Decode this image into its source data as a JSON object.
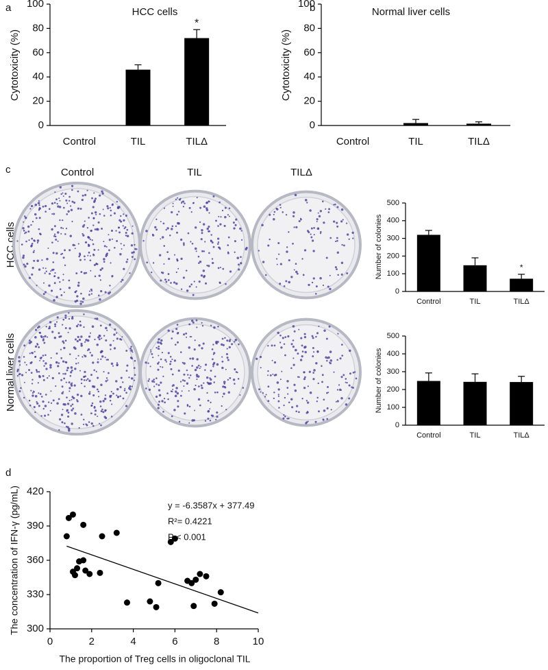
{
  "panel_labels": [
    "a",
    "b",
    "c",
    "d"
  ],
  "plates": {
    "columns": [
      "Control",
      "TIL",
      "TILΔ"
    ],
    "rows": [
      "HCC cells",
      "Normal liver cells"
    ]
  },
  "chart_data": [
    {
      "type": "bar",
      "title": "HCC cells",
      "y_label": "Cytotoxicity (%)",
      "categories": [
        "Control",
        "TIL",
        "TILΔ"
      ],
      "values": [
        0,
        46,
        72
      ],
      "errors": [
        0,
        4,
        7
      ],
      "color": "#000000",
      "ylim": [
        0,
        100
      ],
      "yticks": [
        0,
        20,
        40,
        60,
        80,
        100
      ],
      "annotations": [
        {
          "text": "*",
          "category": "TILΔ"
        }
      ]
    },
    {
      "type": "bar",
      "title": "Normal liver cells",
      "y_label": "Cytotoxicity (%)",
      "categories": [
        "Control",
        "TIL",
        "TILΔ"
      ],
      "values": [
        0,
        2,
        1.5
      ],
      "errors": [
        0,
        3,
        1.5
      ],
      "color": "#000000",
      "ylim": [
        0,
        100
      ],
      "yticks": [
        0,
        20,
        40,
        60,
        80,
        100
      ]
    },
    {
      "type": "bar",
      "y_label": "Number of colonies",
      "categories": [
        "Control",
        "TIL",
        "TILΔ"
      ],
      "values": [
        320,
        148,
        72
      ],
      "errors": [
        25,
        42,
        25
      ],
      "color": "#000000",
      "ylim": [
        0,
        500
      ],
      "yticks": [
        0,
        100,
        200,
        300,
        400,
        500
      ],
      "annotations": [
        {
          "text": "*",
          "category": "TILΔ"
        }
      ]
    },
    {
      "type": "bar",
      "y_label": "Number of colonies",
      "categories": [
        "Control",
        "TIL",
        "TILΔ"
      ],
      "values": [
        248,
        243,
        242
      ],
      "errors": [
        45,
        45,
        32
      ],
      "color": "#000000",
      "ylim": [
        0,
        500
      ],
      "yticks": [
        0,
        100,
        200,
        300,
        400,
        500
      ]
    },
    {
      "type": "scatter",
      "x_label": "The proportion of Treg cells in oligoclonal TIL",
      "y_label": "The concentration of IFN-γ (pg/mL)",
      "color": "#000000",
      "x": [
        0.8,
        0.9,
        1.1,
        1.6,
        1.1,
        1.2,
        1.3,
        1.4,
        1.6,
        1.7,
        1.9,
        2.4,
        2.5,
        3.2,
        3.7,
        4.8,
        5.1,
        5.2,
        5.8,
        6.0,
        6.6,
        6.8,
        7.0,
        6.9,
        7.2,
        7.5,
        7.9,
        8.2
      ],
      "values": [
        381,
        397,
        400,
        391,
        350,
        347,
        353,
        359,
        360,
        351,
        348,
        349,
        381,
        384,
        323,
        324,
        319,
        340,
        376,
        379,
        342,
        340,
        343,
        320,
        348,
        346,
        322,
        332
      ],
      "trendline": {
        "slope": -6.3587,
        "intercept": 377.49,
        "x": [
          0.8,
          10
        ]
      },
      "annotations": [
        "y = -6.3587x + 377.49",
        "R²= 0.4221",
        "P < 0.001"
      ],
      "xlim": [
        0,
        10
      ],
      "xticks": [
        0,
        2,
        4,
        6,
        8,
        10
      ],
      "ylim": [
        300,
        420
      ],
      "yticks": [
        300,
        330,
        360,
        390,
        420
      ]
    }
  ]
}
